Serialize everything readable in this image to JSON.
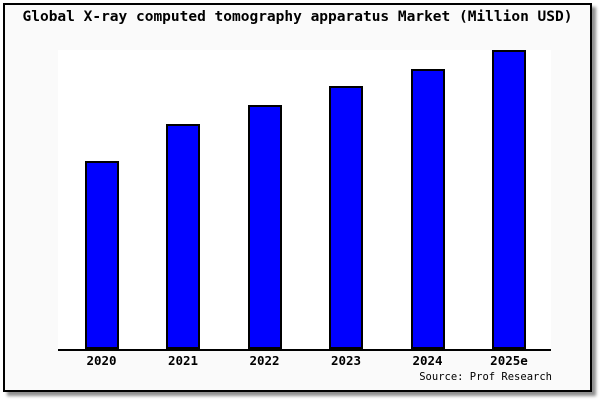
{
  "title": "Global X-ray computed tomography apparatus Market (Million USD)",
  "source_note": "Source: Prof Research",
  "colors": {
    "bar_fill": "#0000ff",
    "bar_border": "#000000",
    "frame_border": "#000000",
    "card_background": "#fafafa",
    "plot_background": "#ffffff",
    "shadow": "#8f8f8f",
    "text": "#000000"
  },
  "chart_data": {
    "type": "bar",
    "title": "Global X-ray computed tomography apparatus Market (Million USD)",
    "categories": [
      "2020",
      "2021",
      "2022",
      "2023",
      "2024",
      "2025e"
    ],
    "values": [
      62.8,
      75.2,
      81.5,
      88.0,
      93.6,
      100.0
    ],
    "value_basis": "relative heights estimated from pixels; no y-axis tick labels shown",
    "xlabel": "",
    "ylabel": "",
    "ylim": [
      0,
      100
    ],
    "grid": false,
    "y_axis_visible": false,
    "legend": null,
    "source": "Source: Prof Research"
  }
}
